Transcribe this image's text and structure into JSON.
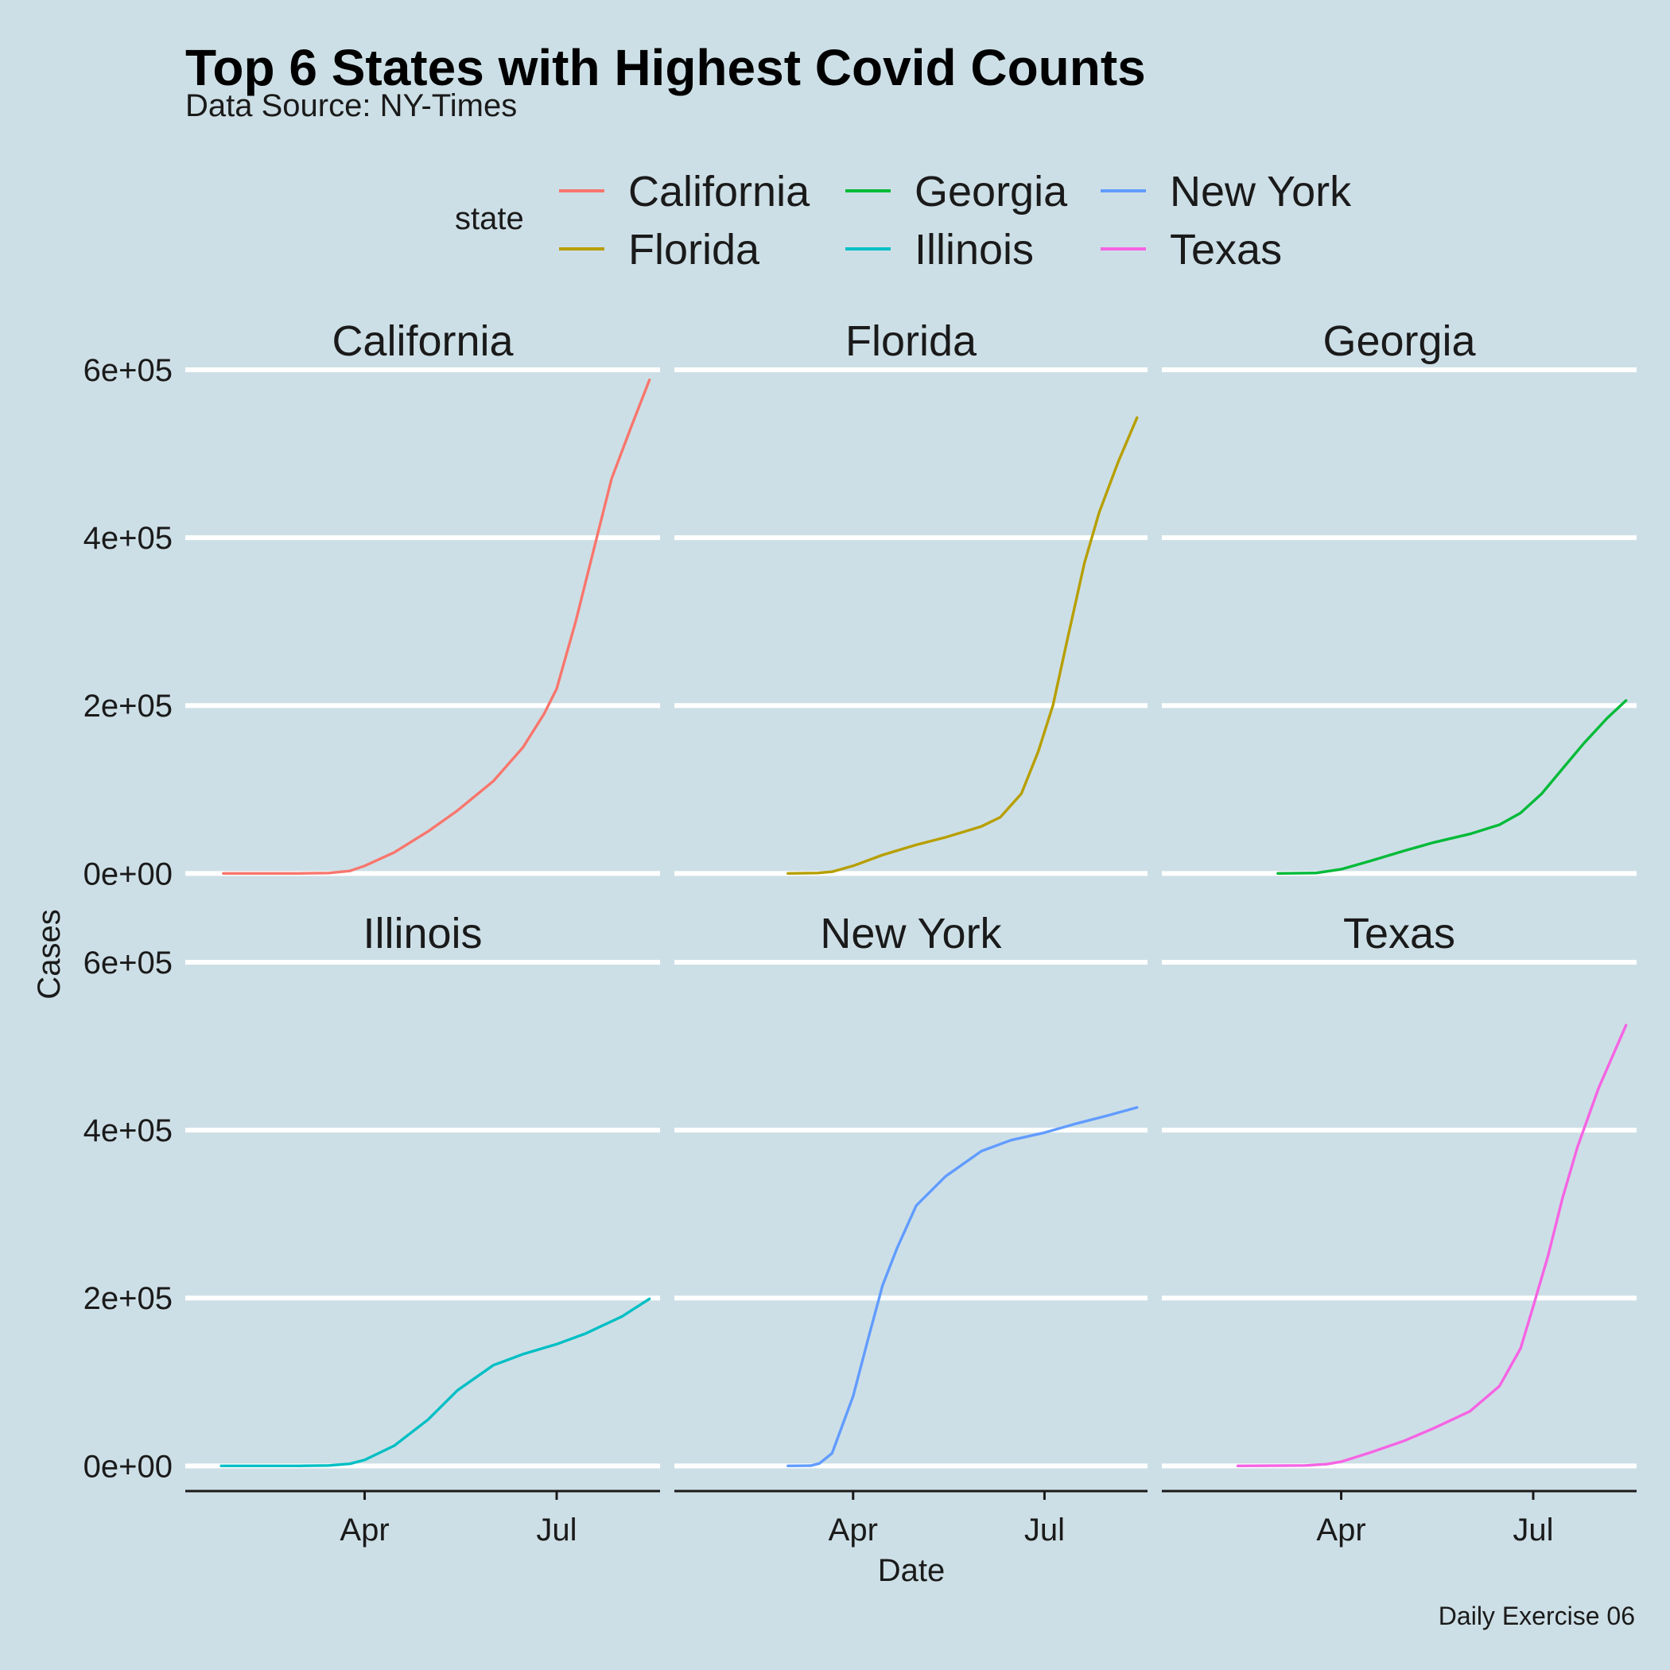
{
  "chart_data": {
    "type": "line",
    "title": "Top 6 States with Highest Covid Counts",
    "subtitle": "Data Source: NY-Times",
    "caption": "Daily Exercise 06",
    "xlabel": "Date",
    "ylabel": "Cases",
    "legend": {
      "title": "state",
      "position": "top"
    },
    "grid": "horizontal major only",
    "x_ticks": [
      {
        "label": "Apr",
        "date": "2020-04-01"
      },
      {
        "label": "Jul",
        "date": "2020-07-01"
      }
    ],
    "y_ticks": [
      {
        "label": "0e+00",
        "value": 0
      },
      {
        "label": "2e+05",
        "value": 200000
      },
      {
        "label": "4e+05",
        "value": 400000
      },
      {
        "label": "6e+05",
        "value": 600000
      }
    ],
    "xlim": [
      "2020-01-07",
      "2020-08-19"
    ],
    "ylim": [
      -30000,
      600000
    ],
    "series": [
      {
        "name": "California",
        "color": "#F8766D",
        "points": [
          [
            "2020-01-25",
            0
          ],
          [
            "2020-03-01",
            0
          ],
          [
            "2020-03-15",
            500
          ],
          [
            "2020-03-25",
            3000
          ],
          [
            "2020-04-01",
            9000
          ],
          [
            "2020-04-15",
            25000
          ],
          [
            "2020-05-01",
            50000
          ],
          [
            "2020-05-15",
            75000
          ],
          [
            "2020-06-01",
            110000
          ],
          [
            "2020-06-15",
            150000
          ],
          [
            "2020-06-25",
            190000
          ],
          [
            "2020-07-01",
            220000
          ],
          [
            "2020-07-10",
            300000
          ],
          [
            "2020-07-20",
            400000
          ],
          [
            "2020-07-27",
            470000
          ],
          [
            "2020-08-05",
            530000
          ],
          [
            "2020-08-14",
            588000
          ]
        ]
      },
      {
        "name": "Florida",
        "color": "#B79F00",
        "points": [
          [
            "2020-03-01",
            0
          ],
          [
            "2020-03-15",
            500
          ],
          [
            "2020-03-22",
            2000
          ],
          [
            "2020-04-01",
            9000
          ],
          [
            "2020-04-15",
            22000
          ],
          [
            "2020-05-01",
            34000
          ],
          [
            "2020-05-15",
            43000
          ],
          [
            "2020-06-01",
            56000
          ],
          [
            "2020-06-10",
            67000
          ],
          [
            "2020-06-20",
            95000
          ],
          [
            "2020-06-28",
            145000
          ],
          [
            "2020-07-05",
            200000
          ],
          [
            "2020-07-12",
            280000
          ],
          [
            "2020-07-20",
            370000
          ],
          [
            "2020-07-27",
            430000
          ],
          [
            "2020-08-05",
            490000
          ],
          [
            "2020-08-14",
            543000
          ]
        ]
      },
      {
        "name": "Georgia",
        "color": "#00BA38",
        "points": [
          [
            "2020-03-02",
            0
          ],
          [
            "2020-03-20",
            500
          ],
          [
            "2020-04-01",
            5000
          ],
          [
            "2020-04-15",
            15000
          ],
          [
            "2020-05-01",
            27000
          ],
          [
            "2020-05-15",
            37000
          ],
          [
            "2020-06-01",
            47000
          ],
          [
            "2020-06-15",
            58000
          ],
          [
            "2020-06-25",
            72000
          ],
          [
            "2020-07-05",
            95000
          ],
          [
            "2020-07-15",
            125000
          ],
          [
            "2020-07-25",
            155000
          ],
          [
            "2020-08-05",
            185000
          ],
          [
            "2020-08-14",
            206000
          ]
        ]
      },
      {
        "name": "Illinois",
        "color": "#00BFC4",
        "points": [
          [
            "2020-01-24",
            0
          ],
          [
            "2020-03-01",
            0
          ],
          [
            "2020-03-15",
            500
          ],
          [
            "2020-03-25",
            2500
          ],
          [
            "2020-04-01",
            7000
          ],
          [
            "2020-04-15",
            24000
          ],
          [
            "2020-05-01",
            55000
          ],
          [
            "2020-05-15",
            90000
          ],
          [
            "2020-06-01",
            120000
          ],
          [
            "2020-06-15",
            133000
          ],
          [
            "2020-07-01",
            145000
          ],
          [
            "2020-07-15",
            158000
          ],
          [
            "2020-08-01",
            178000
          ],
          [
            "2020-08-14",
            199000
          ]
        ]
      },
      {
        "name": "New York",
        "color": "#619CFF",
        "points": [
          [
            "2020-03-01",
            0
          ],
          [
            "2020-03-12",
            300
          ],
          [
            "2020-03-16",
            3000
          ],
          [
            "2020-03-22",
            15000
          ],
          [
            "2020-04-01",
            83000
          ],
          [
            "2020-04-08",
            150000
          ],
          [
            "2020-04-15",
            215000
          ],
          [
            "2020-04-22",
            260000
          ],
          [
            "2020-05-01",
            310000
          ],
          [
            "2020-05-15",
            345000
          ],
          [
            "2020-06-01",
            375000
          ],
          [
            "2020-06-15",
            388000
          ],
          [
            "2020-07-01",
            397000
          ],
          [
            "2020-07-15",
            407000
          ],
          [
            "2020-08-01",
            418000
          ],
          [
            "2020-08-14",
            427000
          ]
        ]
      },
      {
        "name": "Texas",
        "color": "#F564E3",
        "points": [
          [
            "2020-02-12",
            0
          ],
          [
            "2020-03-15",
            500
          ],
          [
            "2020-03-25",
            2000
          ],
          [
            "2020-04-01",
            5000
          ],
          [
            "2020-04-15",
            16000
          ],
          [
            "2020-05-01",
            30000
          ],
          [
            "2020-05-15",
            45000
          ],
          [
            "2020-06-01",
            65000
          ],
          [
            "2020-06-15",
            95000
          ],
          [
            "2020-06-25",
            140000
          ],
          [
            "2020-07-01",
            190000
          ],
          [
            "2020-07-08",
            250000
          ],
          [
            "2020-07-15",
            320000
          ],
          [
            "2020-07-22",
            380000
          ],
          [
            "2020-08-01",
            450000
          ],
          [
            "2020-08-14",
            525000
          ]
        ]
      }
    ]
  }
}
